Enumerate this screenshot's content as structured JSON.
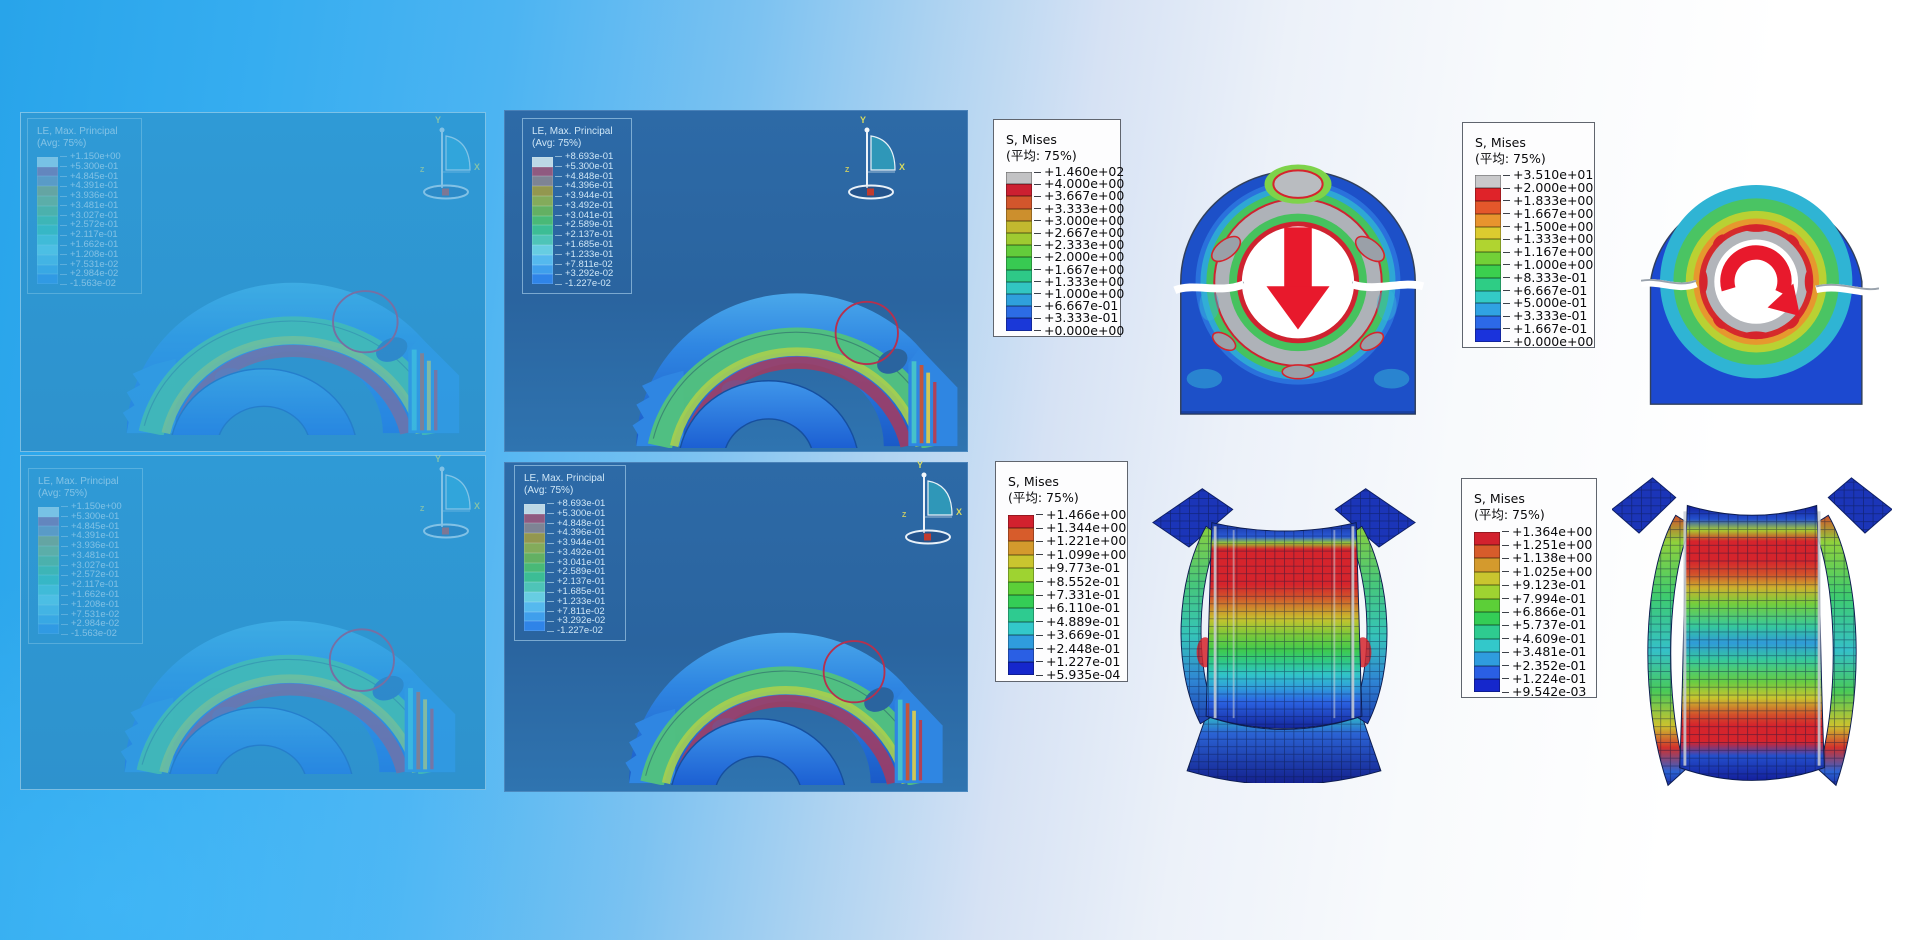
{
  "legends": {
    "le_a": {
      "title": "LE, Max. Principal",
      "subtitle": "(Avg: 75%)",
      "values": [
        "+1.150e+00",
        "+5.300e-01",
        "+4.845e-01",
        "+4.391e-01",
        "+3.936e-01",
        "+3.481e-01",
        "+3.027e-01",
        "+2.572e-01",
        "+2.117e-01",
        "+1.662e-01",
        "+1.208e-01",
        "+7.531e-02",
        "+2.984e-02",
        "-1.563e-02"
      ],
      "colors": [
        "#bcd8e6",
        "#8f5a80",
        "#7e8494",
        "#93974f",
        "#83ab5b",
        "#63b063",
        "#49b977",
        "#3cbd95",
        "#4ec4b8",
        "#67cde2",
        "#55b9ee",
        "#3f9fec",
        "#2f84e8"
      ]
    },
    "le_b": {
      "title": "LE, Max. Principal",
      "subtitle": "(Avg: 75%)",
      "values": [
        "+8.693e-01",
        "+5.300e-01",
        "+4.848e-01",
        "+4.396e-01",
        "+3.944e-01",
        "+3.492e-01",
        "+3.041e-01",
        "+2.589e-01",
        "+2.137e-01",
        "+1.685e-01",
        "+1.233e-01",
        "+7.811e-02",
        "+3.292e-02",
        "-1.227e-02"
      ],
      "colors": [
        "#bcd8e6",
        "#8f5a80",
        "#7e8494",
        "#93974f",
        "#83ab5b",
        "#63b063",
        "#49b977",
        "#3cbd95",
        "#4ec4b8",
        "#67cde2",
        "#55b9ee",
        "#3f9fec",
        "#2f84e8"
      ]
    },
    "s_tm": {
      "title": "S, Mises",
      "subtitle": "(平均: 75%)",
      "values": [
        "+1.460e+02",
        "+4.000e+00",
        "+3.667e+00",
        "+3.333e+00",
        "+3.000e+00",
        "+2.667e+00",
        "+2.333e+00",
        "+2.000e+00",
        "+1.667e+00",
        "+1.333e+00",
        "+1.000e+00",
        "+6.667e-01",
        "+3.333e-01",
        "+0.000e+00"
      ],
      "colors": [
        "#c2c2c4",
        "#cc2031",
        "#d2562c",
        "#cc8f2d",
        "#c2b92f",
        "#9fca31",
        "#63cc3b",
        "#38ca52",
        "#2ec987",
        "#32c6c2",
        "#2fa0dc",
        "#2c6ce4",
        "#1a38d8"
      ]
    },
    "s_tr": {
      "title": "S, Mises",
      "subtitle": "(平均: 75%)",
      "values": [
        "+3.510e+01",
        "+2.000e+00",
        "+1.833e+00",
        "+1.667e+00",
        "+1.500e+00",
        "+1.333e+00",
        "+1.167e+00",
        "+1.000e+00",
        "+8.333e-01",
        "+6.667e-01",
        "+5.000e-01",
        "+3.333e-01",
        "+1.667e-01",
        "+0.000e+00"
      ],
      "colors": [
        "#c9c9cb",
        "#df2329",
        "#e4572b",
        "#e8942e",
        "#dccb2f",
        "#b0d430",
        "#72d037",
        "#3bcf4e",
        "#2ecd85",
        "#33cac6",
        "#30a2e2",
        "#2c69e8",
        "#1a33dc"
      ]
    },
    "s_bm": {
      "title": "S, Mises",
      "subtitle": "(平均: 75%)",
      "values": [
        "+1.466e+00",
        "+1.344e+00",
        "+1.221e+00",
        "+1.099e+00",
        "+9.773e-01",
        "+8.552e-01",
        "+7.331e-01",
        "+6.110e-01",
        "+4.889e-01",
        "+3.669e-01",
        "+2.448e-01",
        "+1.227e-01",
        "+5.935e-04"
      ],
      "colors": [
        "#d2212e",
        "#d75c2b",
        "#d49a2d",
        "#c9c52f",
        "#9ed331",
        "#5ccf38",
        "#34cd56",
        "#2ecb90",
        "#33c8ca",
        "#2f9cde",
        "#2a5fe4",
        "#1527cc"
      ]
    },
    "s_br": {
      "title": "S, Mises",
      "subtitle": "(平均: 75%)",
      "values": [
        "+1.364e+00",
        "+1.251e+00",
        "+1.138e+00",
        "+1.025e+00",
        "+9.123e-01",
        "+7.994e-01",
        "+6.866e-01",
        "+5.737e-01",
        "+4.609e-01",
        "+3.481e-01",
        "+2.352e-01",
        "+1.224e-01",
        "+9.542e-03"
      ],
      "colors": [
        "#d2212e",
        "#d75c2b",
        "#d49a2d",
        "#c9c52f",
        "#9ed331",
        "#5ccf38",
        "#34cd56",
        "#2ecb90",
        "#33c8ca",
        "#2f9cde",
        "#2a5fe4",
        "#1527cc"
      ]
    }
  },
  "triad": {
    "x": "X",
    "y": "Y",
    "z": "Z"
  },
  "palette": {
    "canvas_left": "#2fa9ee",
    "canvas_right": "#ffffff",
    "panel_washed_bg": "#2f98d4",
    "panel_dark_bg": "#2a649f",
    "annotation_red": "#e8192c",
    "legend_border_light": "#60656e"
  }
}
